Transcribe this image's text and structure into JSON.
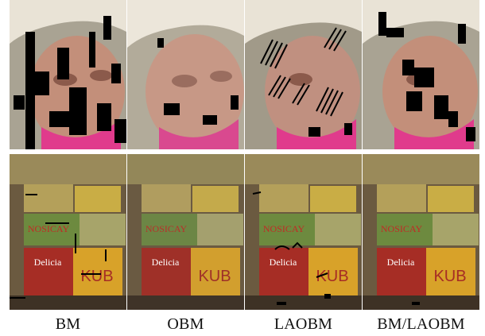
{
  "figure": {
    "labels": [
      "BM",
      "OBM",
      "LAOBM",
      "BM/LAOBM"
    ],
    "rows": [
      {
        "content": "face crop with hat",
        "methods": [
          "BM",
          "OBM",
          "LAOBM",
          "BM/LAOBM"
        ]
      },
      {
        "content": "wall of printed tins and posters",
        "methods": [
          "BM",
          "OBM",
          "LAOBM",
          "BM/LAOBM"
        ]
      }
    ]
  }
}
